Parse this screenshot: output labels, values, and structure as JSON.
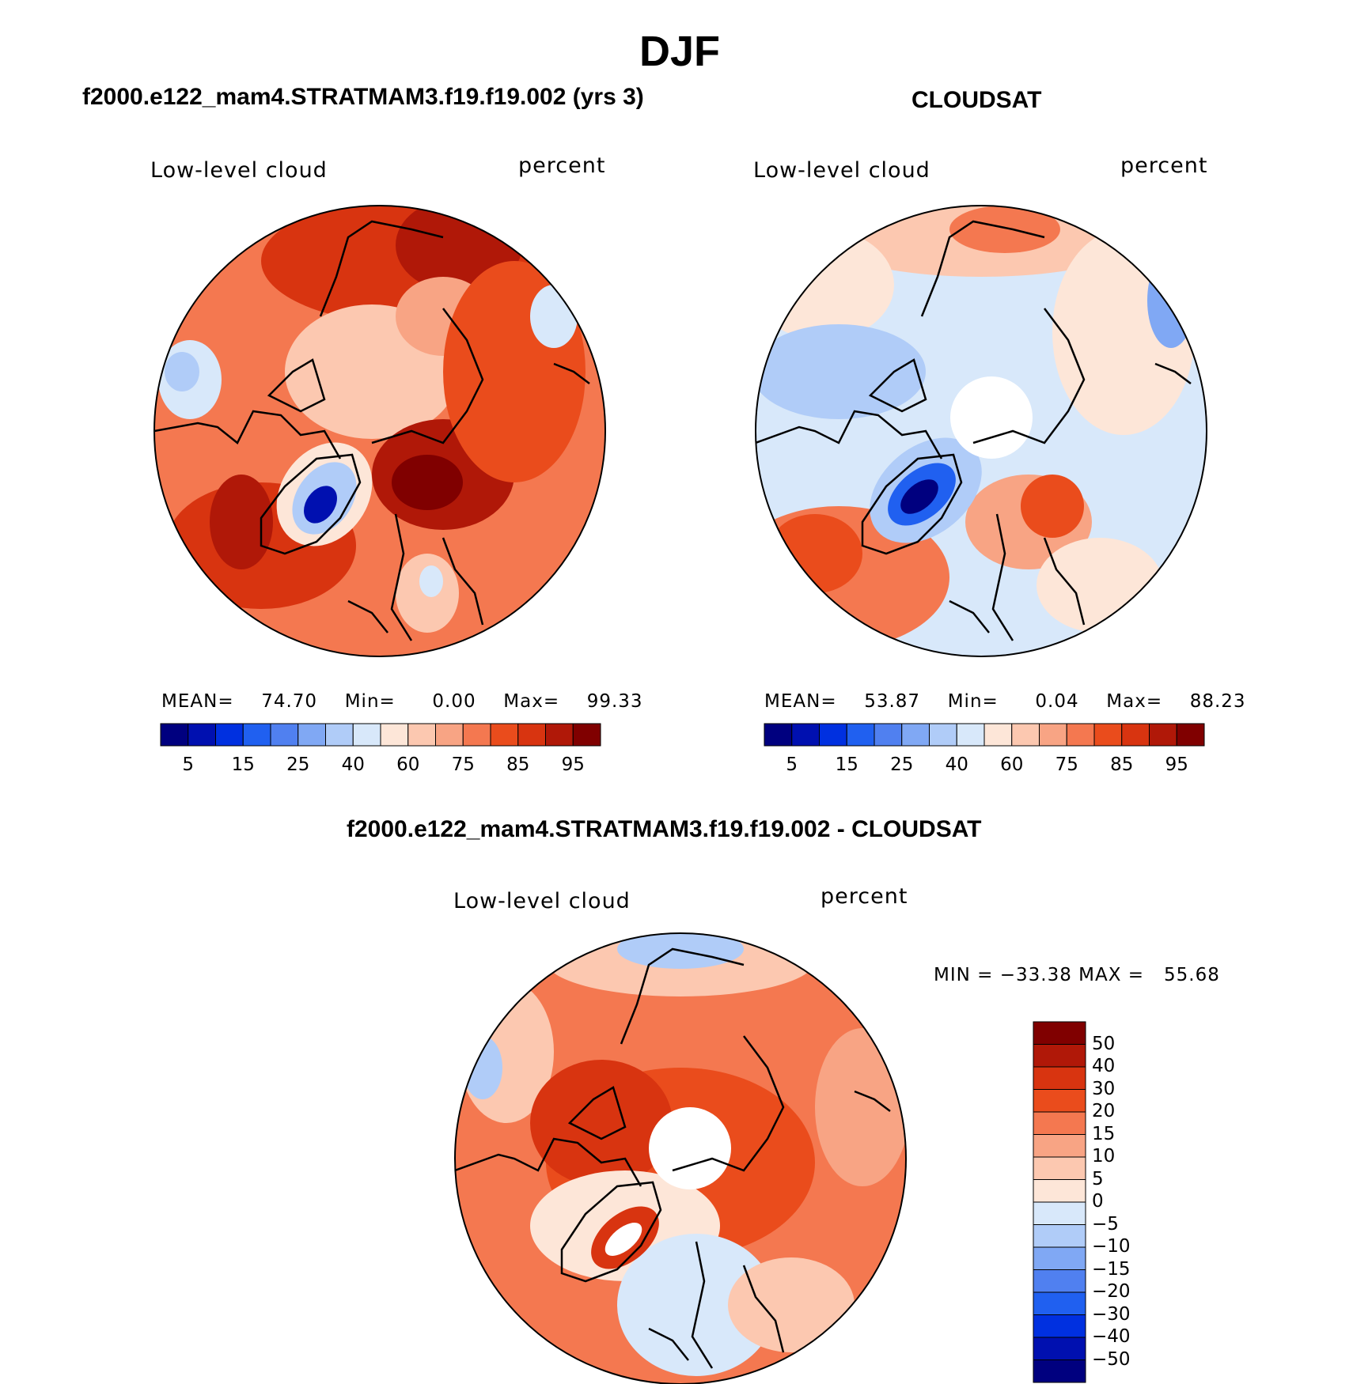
{
  "figure_title": "DJF",
  "palette_abs": [
    "#00007f",
    "#0010b0",
    "#0030e0",
    "#2060f0",
    "#5080f0",
    "#80a8f4",
    "#b0ccf8",
    "#d8e8fa",
    "#fde6d8",
    "#fcc8b0",
    "#f8a484",
    "#f47850",
    "#ea4c1c",
    "#d83410",
    "#b01808",
    "#800000"
  ],
  "palette_diff": [
    "#00007f",
    "#0010b0",
    "#0030e0",
    "#2060f0",
    "#5080f0",
    "#80a8f4",
    "#b0ccf8",
    "#d8e8fa",
    "#fde6d8",
    "#fcc8b0",
    "#f8a484",
    "#f47850",
    "#ea4c1c",
    "#d83410",
    "#b01808",
    "#800000"
  ],
  "panels": [
    {
      "title": "f2000.e122_mam4.STRATMAM3.f19.f19.002 (yrs 3)",
      "variable": "Low-level cloud",
      "units": "percent",
      "mean_label": "MEAN=",
      "mean": "74.70",
      "min_label": "Min=",
      "min": "0.00",
      "max_label": "Max=",
      "max": "99.33",
      "colorbar_ticks": [
        "5",
        "15",
        "25",
        "40",
        "60",
        "75",
        "85",
        "95"
      ]
    },
    {
      "title": "CLOUDSAT",
      "variable": "Low-level cloud",
      "units": "percent",
      "mean_label": "MEAN=",
      "mean": "53.87",
      "min_label": "Min=",
      "min": "0.04",
      "max_label": "Max=",
      "max": "88.23",
      "colorbar_ticks": [
        "5",
        "15",
        "25",
        "40",
        "60",
        "75",
        "85",
        "95"
      ]
    },
    {
      "title": "f2000.e122_mam4.STRATMAM3.f19.f19.002 - CLOUDSAT",
      "variable": "Low-level cloud",
      "units": "percent",
      "minmax_text": "MIN = −33.38 MAX =   55.68",
      "colorbar_ticks": [
        "50",
        "40",
        "30",
        "20",
        "15",
        "10",
        "5",
        "0",
        "−5",
        "−10",
        "−15",
        "−20",
        "−30",
        "−40",
        "−50"
      ]
    }
  ]
}
